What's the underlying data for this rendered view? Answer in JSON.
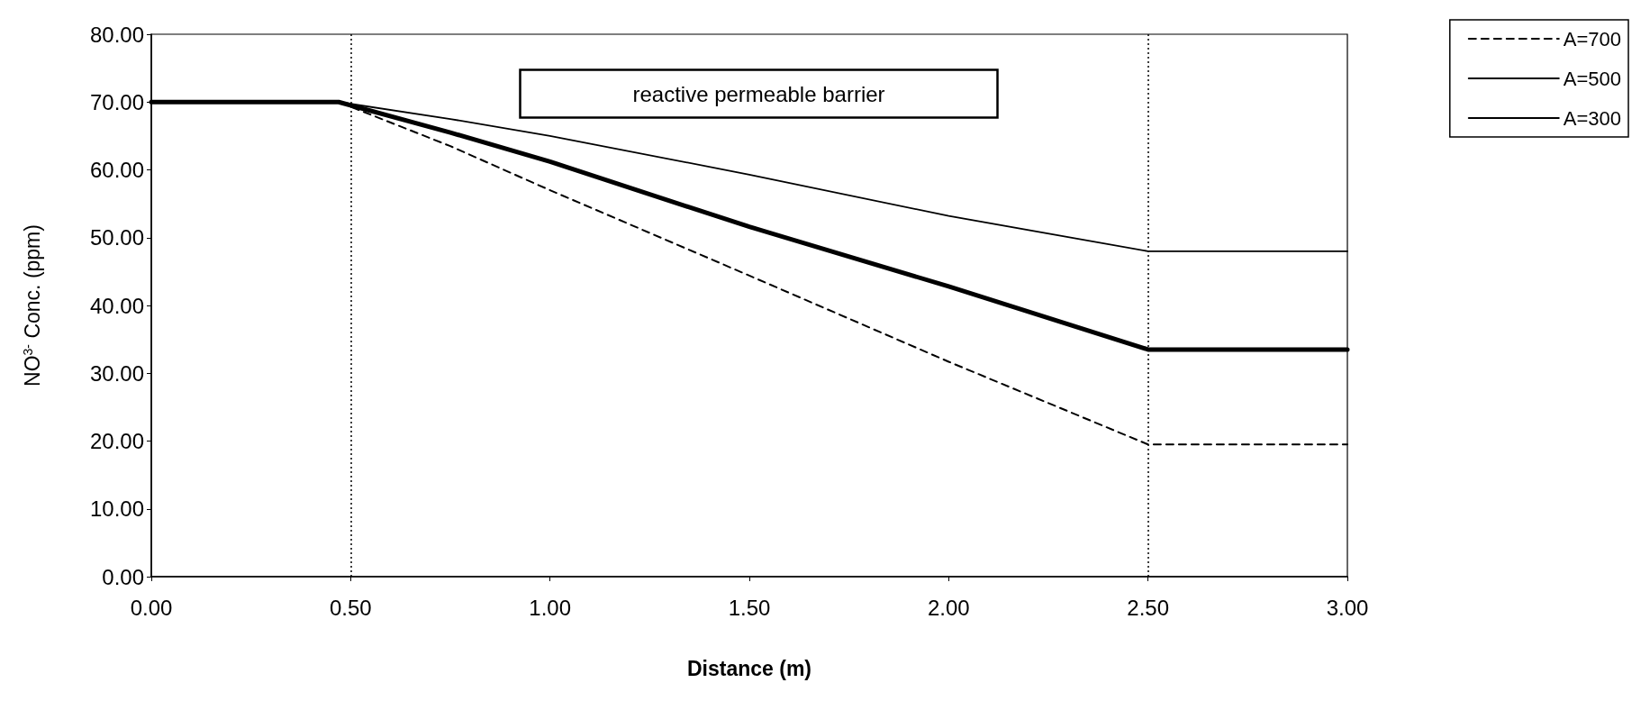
{
  "chart_data": {
    "type": "line",
    "xlabel": "Distance (m)",
    "ylabel": "NO$^{3-}$ Conc. (ppm)",
    "annotations": [
      "reactive permeable barrier"
    ],
    "xlim": [
      0,
      3
    ],
    "xticks": [
      {
        "value": 0,
        "label": "0.00"
      },
      {
        "value": 0.5,
        "label": "0.50"
      },
      {
        "value": 1,
        "label": "1.00"
      },
      {
        "value": 1.5,
        "label": "1.50"
      },
      {
        "value": 2,
        "label": "2.00"
      },
      {
        "value": 2.5,
        "label": "2.50"
      },
      {
        "value": 3,
        "label": "3.00"
      }
    ],
    "ylim": [
      0,
      80
    ],
    "yticks": [
      {
        "value": 0,
        "label": "0.00"
      },
      {
        "value": 10,
        "label": "10.00"
      },
      {
        "value": 20,
        "label": "20.00"
      },
      {
        "value": 30,
        "label": "30.00"
      },
      {
        "value": 40,
        "label": "40.00"
      },
      {
        "value": 50,
        "label": "50.00"
      },
      {
        "value": 60,
        "label": "60.00"
      },
      {
        "value": 70,
        "label": "70.00"
      },
      {
        "value": 80,
        "label": "80.00"
      }
    ],
    "x": [
      0,
      0.47,
      0.75,
      1,
      1.5,
      2,
      2.5,
      3
    ],
    "series": [
      {
        "name": "A=700",
        "color": "#000000",
        "line_style": "dashed",
        "values": [
          70,
          70,
          63.5,
          57,
          44.4,
          31.7,
          19.5,
          19.5
        ]
      },
      {
        "name": "A=500",
        "color": "#000000",
        "line_style": "solid",
        "values": [
          70,
          70,
          65.5,
          61.2,
          51.6,
          42.8,
          33.5,
          33.5
        ]
      },
      {
        "name": "A=300",
        "color": "#000000",
        "line_style": "solid",
        "values": [
          70,
          70,
          67.5,
          65,
          59.3,
          53.2,
          48,
          48
        ]
      }
    ],
    "ref_lines": [
      {
        "axis": "x",
        "value": 0.5,
        "line_style": "dotted",
        "color": "#000000"
      },
      {
        "axis": "x",
        "value": 2.5,
        "line_style": "dotted",
        "color": "#000000"
      }
    ],
    "grid": false,
    "legend": "top right",
    "marker": "none"
  }
}
